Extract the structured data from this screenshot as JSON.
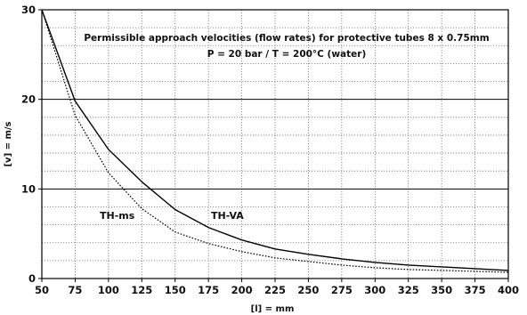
{
  "chart_data": {
    "type": "line",
    "title": "Permissible approach velocities (flow rates) for protective tubes 8 x 0.75mm",
    "subtitle": "P = 20 bar  /  T = 200°C  (water)",
    "xlabel": "[l] = mm",
    "ylabel": "[v] = m/s",
    "xlim": [
      50,
      400
    ],
    "ylim": [
      0,
      30
    ],
    "x_ticks": [
      50,
      75,
      100,
      125,
      150,
      175,
      200,
      225,
      250,
      275,
      300,
      325,
      350,
      375,
      400
    ],
    "y_ticks": [
      0,
      10,
      20,
      30
    ],
    "grid": true,
    "series": [
      {
        "name": "TH-VA",
        "style": "solid",
        "color": "#000000",
        "x": [
          50,
          75,
          100,
          125,
          150,
          175,
          200,
          225,
          250,
          275,
          300,
          325,
          350,
          375,
          400
        ],
        "y": [
          30,
          19.8,
          14.4,
          10.8,
          7.7,
          5.7,
          4.3,
          3.3,
          2.7,
          2.2,
          1.8,
          1.5,
          1.3,
          1.1,
          0.9
        ]
      },
      {
        "name": "TH-ms",
        "style": "dotted",
        "color": "#000000",
        "x": [
          50,
          75,
          100,
          125,
          150,
          175,
          200,
          225,
          250,
          275,
          300,
          325,
          350,
          375,
          400
        ],
        "y": [
          30,
          18.2,
          11.8,
          7.8,
          5.2,
          3.9,
          3.0,
          2.3,
          1.9,
          1.5,
          1.2,
          1.0,
          0.9,
          0.8,
          0.7
        ]
      }
    ]
  }
}
